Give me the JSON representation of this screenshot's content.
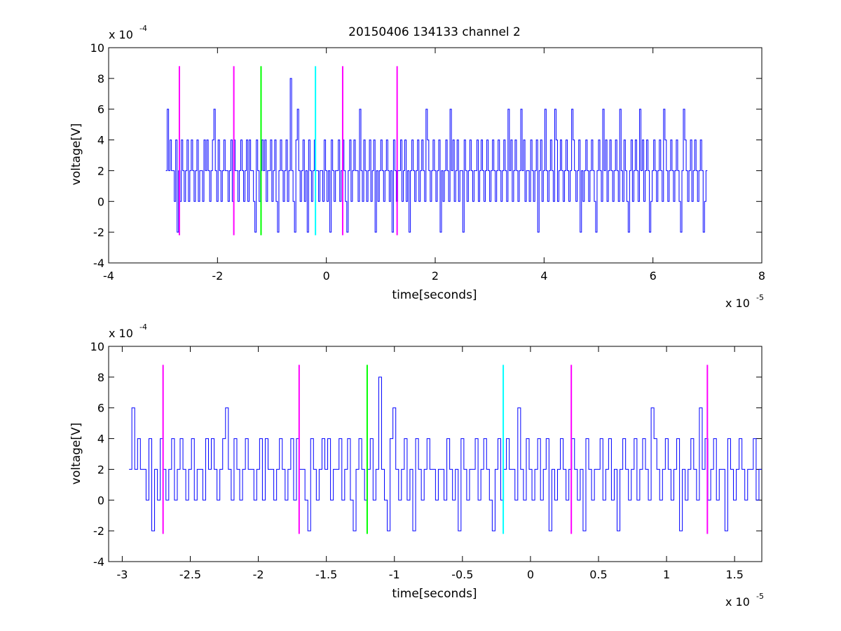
{
  "chart_data": [
    {
      "type": "line",
      "title": "20150406 134133 channel 2",
      "xlabel": "time[seconds]",
      "ylabel": "voltage[V]",
      "x_multiplier": "x 10",
      "x_exponent": "-5",
      "y_multiplier": "x 10",
      "y_exponent": "-4",
      "xlim": [
        -4,
        8
      ],
      "ylim": [
        -4,
        10
      ],
      "xticks": [
        -4,
        -2,
        0,
        2,
        4,
        6,
        8
      ],
      "yticks": [
        -4,
        -2,
        0,
        2,
        4,
        6,
        8,
        10
      ],
      "grid": false,
      "signal": {
        "color": "#0000ff",
        "x_start": -2.95,
        "x_end": 7.0,
        "values": [
          2,
          6,
          2,
          4,
          2,
          2,
          0,
          4,
          -2,
          2,
          0,
          4,
          2,
          0,
          2,
          4,
          0,
          2,
          4,
          2,
          0,
          2,
          4,
          0,
          2,
          2,
          0,
          4,
          2,
          4,
          2,
          0,
          2,
          4,
          6,
          2,
          0,
          4,
          2,
          0,
          2,
          4,
          2,
          2,
          0,
          2,
          4,
          0,
          4,
          2,
          2,
          0,
          2,
          4,
          2,
          0,
          2,
          4,
          0,
          4,
          2,
          2,
          0,
          -2,
          4,
          2,
          0,
          2,
          4,
          2,
          4,
          0,
          2,
          2,
          4,
          0,
          2,
          4,
          0,
          -2,
          2,
          4,
          2,
          0,
          2,
          4,
          0,
          2,
          8,
          2,
          0,
          -2,
          4,
          6,
          2,
          0,
          2,
          4,
          0,
          2,
          -2,
          4,
          2,
          0,
          2,
          4,
          2,
          2,
          0,
          2,
          2,
          0,
          4,
          2,
          0,
          2,
          -2,
          4,
          2,
          0,
          2,
          2,
          4,
          0,
          2,
          4,
          2,
          0,
          -2,
          2,
          4,
          0,
          2,
          4,
          2,
          2,
          0,
          6,
          2,
          0,
          4,
          2,
          0,
          2,
          4,
          0,
          2,
          4,
          -2,
          2,
          0,
          2,
          4,
          2,
          0,
          2,
          4,
          2,
          0,
          2,
          -2,
          4,
          2,
          0,
          2,
          2,
          4,
          0,
          2,
          4,
          0,
          2,
          -2,
          2,
          4,
          2,
          0,
          2,
          4,
          0,
          2,
          4,
          2,
          0,
          6,
          4,
          2,
          0,
          2,
          4,
          2,
          0,
          2,
          4,
          -2,
          2,
          0,
          2,
          4,
          2,
          0,
          6,
          2,
          4,
          0,
          2,
          4,
          0,
          2,
          2,
          -2,
          4,
          2,
          0,
          2,
          4,
          2,
          0,
          2,
          2,
          4,
          0,
          2,
          4,
          2,
          0,
          2,
          4,
          2,
          0,
          2,
          4,
          2,
          0,
          2,
          4,
          2,
          0,
          2,
          4,
          2,
          0,
          6,
          2,
          4,
          0,
          2,
          4,
          2,
          0,
          2,
          6,
          2,
          4,
          0,
          2,
          2,
          0,
          4,
          2,
          0,
          2,
          4,
          -2,
          2,
          4,
          0,
          2,
          6,
          2,
          0,
          2,
          4,
          2,
          0,
          6,
          4,
          0,
          2,
          4,
          2,
          0,
          2,
          4,
          2,
          0,
          2,
          6,
          4,
          2,
          0,
          2,
          4,
          -2,
          2,
          0,
          2,
          4,
          2,
          0,
          2,
          4,
          2,
          0,
          -2,
          2,
          4,
          2,
          0,
          6,
          2,
          4,
          0,
          2,
          4,
          2,
          0,
          2,
          4,
          2,
          0,
          6,
          2,
          0,
          4,
          2,
          0,
          -2,
          2,
          4,
          0,
          2,
          4,
          2,
          0,
          6,
          2,
          4,
          0,
          2,
          4,
          2,
          -2,
          0,
          2,
          4,
          2,
          0,
          2,
          4,
          2,
          0,
          6,
          4,
          2,
          0,
          2,
          4,
          2,
          0,
          2,
          4,
          2,
          0,
          -2,
          2,
          6,
          4,
          2,
          0,
          2,
          4,
          0,
          2,
          4,
          2,
          0,
          2,
          4,
          2,
          -2,
          0,
          2
        ]
      },
      "markers": [
        {
          "x": -2.7,
          "color": "#ff00ff",
          "y_top": 8.8,
          "y_bottom": -2.2
        },
        {
          "x": -1.7,
          "color": "#ff00ff",
          "y_top": 8.8,
          "y_bottom": -2.2
        },
        {
          "x": -1.2,
          "color": "#00ff00",
          "y_top": 8.8,
          "y_bottom": -2.2
        },
        {
          "x": -0.2,
          "color": "#00ffff",
          "y_top": 8.8,
          "y_bottom": -2.2
        },
        {
          "x": 0.3,
          "color": "#ff00ff",
          "y_top": 8.8,
          "y_bottom": -2.2
        },
        {
          "x": 1.3,
          "color": "#ff00ff",
          "y_top": 8.8,
          "y_bottom": -2.2
        }
      ]
    },
    {
      "type": "line",
      "title": "",
      "xlabel": "time[seconds]",
      "ylabel": "voltage[V]",
      "x_multiplier": "x 10",
      "x_exponent": "-5",
      "y_multiplier": "x 10",
      "y_exponent": "-4",
      "xlim": [
        -3.1,
        1.7
      ],
      "ylim": [
        -4,
        10
      ],
      "xticks": [
        -3,
        -2.5,
        -2,
        -1.5,
        -1,
        -0.5,
        0,
        0.5,
        1,
        1.5
      ],
      "yticks": [
        -4,
        -2,
        0,
        2,
        4,
        6,
        8,
        10
      ],
      "grid": false,
      "signal": {
        "color": "#0000ff",
        "x_start": -2.95,
        "x_end": 1.7,
        "values": [
          2,
          6,
          2,
          4,
          2,
          2,
          0,
          4,
          -2,
          2,
          0,
          4,
          2,
          0,
          2,
          4,
          0,
          2,
          4,
          2,
          0,
          2,
          4,
          0,
          2,
          2,
          0,
          4,
          2,
          4,
          2,
          0,
          2,
          4,
          6,
          2,
          0,
          4,
          2,
          0,
          2,
          4,
          2,
          2,
          0,
          2,
          4,
          0,
          4,
          2,
          2,
          0,
          2,
          4,
          2,
          0,
          2,
          4,
          0,
          4,
          2,
          2,
          0,
          -2,
          4,
          2,
          0,
          2,
          4,
          2,
          4,
          0,
          2,
          2,
          4,
          0,
          2,
          4,
          0,
          -2,
          2,
          4,
          2,
          0,
          2,
          4,
          0,
          2,
          8,
          2,
          0,
          -2,
          4,
          6,
          2,
          0,
          2,
          4,
          0,
          2,
          -2,
          4,
          2,
          0,
          2,
          4,
          2,
          2,
          0,
          2,
          2,
          0,
          4,
          2,
          0,
          2,
          -2,
          4,
          2,
          0,
          2,
          2,
          4,
          0,
          2,
          4,
          2,
          0,
          -2,
          2,
          4,
          0,
          2,
          4,
          2,
          2,
          0,
          6,
          2,
          0,
          4,
          2,
          0,
          2,
          4,
          0,
          2,
          4,
          -2,
          2,
          0,
          2,
          4,
          2,
          0,
          2,
          4,
          2,
          0,
          2,
          -2,
          4,
          2,
          0,
          2,
          2,
          4,
          0,
          2,
          4,
          0,
          2,
          -2,
          2,
          4,
          2,
          0,
          2,
          4,
          0,
          2,
          4,
          2,
          0,
          6,
          4,
          2,
          0,
          2,
          4,
          2,
          0,
          2,
          4,
          -2,
          2,
          0,
          2,
          4,
          2,
          0,
          6,
          2,
          4,
          0,
          2,
          4,
          0,
          2,
          2,
          -2,
          4,
          2,
          0,
          2,
          4,
          2,
          0,
          2,
          2,
          4,
          0,
          2
        ]
      },
      "markers": [
        {
          "x": -2.7,
          "color": "#ff00ff",
          "y_top": 8.8,
          "y_bottom": -2.2
        },
        {
          "x": -1.7,
          "color": "#ff00ff",
          "y_top": 8.8,
          "y_bottom": -2.2
        },
        {
          "x": -1.2,
          "color": "#00ff00",
          "y_top": 8.8,
          "y_bottom": -2.2
        },
        {
          "x": -0.2,
          "color": "#00ffff",
          "y_top": 8.8,
          "y_bottom": -2.2
        },
        {
          "x": 0.3,
          "color": "#ff00ff",
          "y_top": 8.8,
          "y_bottom": -2.2
        },
        {
          "x": 1.3,
          "color": "#ff00ff",
          "y_top": 8.8,
          "y_bottom": -2.2
        }
      ]
    }
  ]
}
